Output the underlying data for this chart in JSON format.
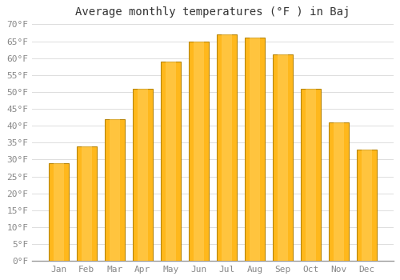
{
  "title": "Average monthly temperatures (°F ) in Baj",
  "months": [
    "Jan",
    "Feb",
    "Mar",
    "Apr",
    "May",
    "Jun",
    "Jul",
    "Aug",
    "Sep",
    "Oct",
    "Nov",
    "Dec"
  ],
  "values": [
    29,
    34,
    42,
    51,
    59,
    65,
    67,
    66,
    61,
    51,
    41,
    33
  ],
  "bar_color_center": "#FFB81C",
  "bar_color_edge": "#F0940A",
  "bar_border_color": "#B8860B",
  "background_color": "#FFFFFF",
  "plot_bg_color": "#FFFFFF",
  "grid_color": "#DDDDDD",
  "ylim": [
    0,
    70
  ],
  "yticks": [
    0,
    5,
    10,
    15,
    20,
    25,
    30,
    35,
    40,
    45,
    50,
    55,
    60,
    65,
    70
  ],
  "ylabel_suffix": "°F",
  "title_fontsize": 10,
  "tick_fontsize": 8,
  "font_family": "monospace",
  "tick_color": "#888888",
  "bar_width": 0.72
}
